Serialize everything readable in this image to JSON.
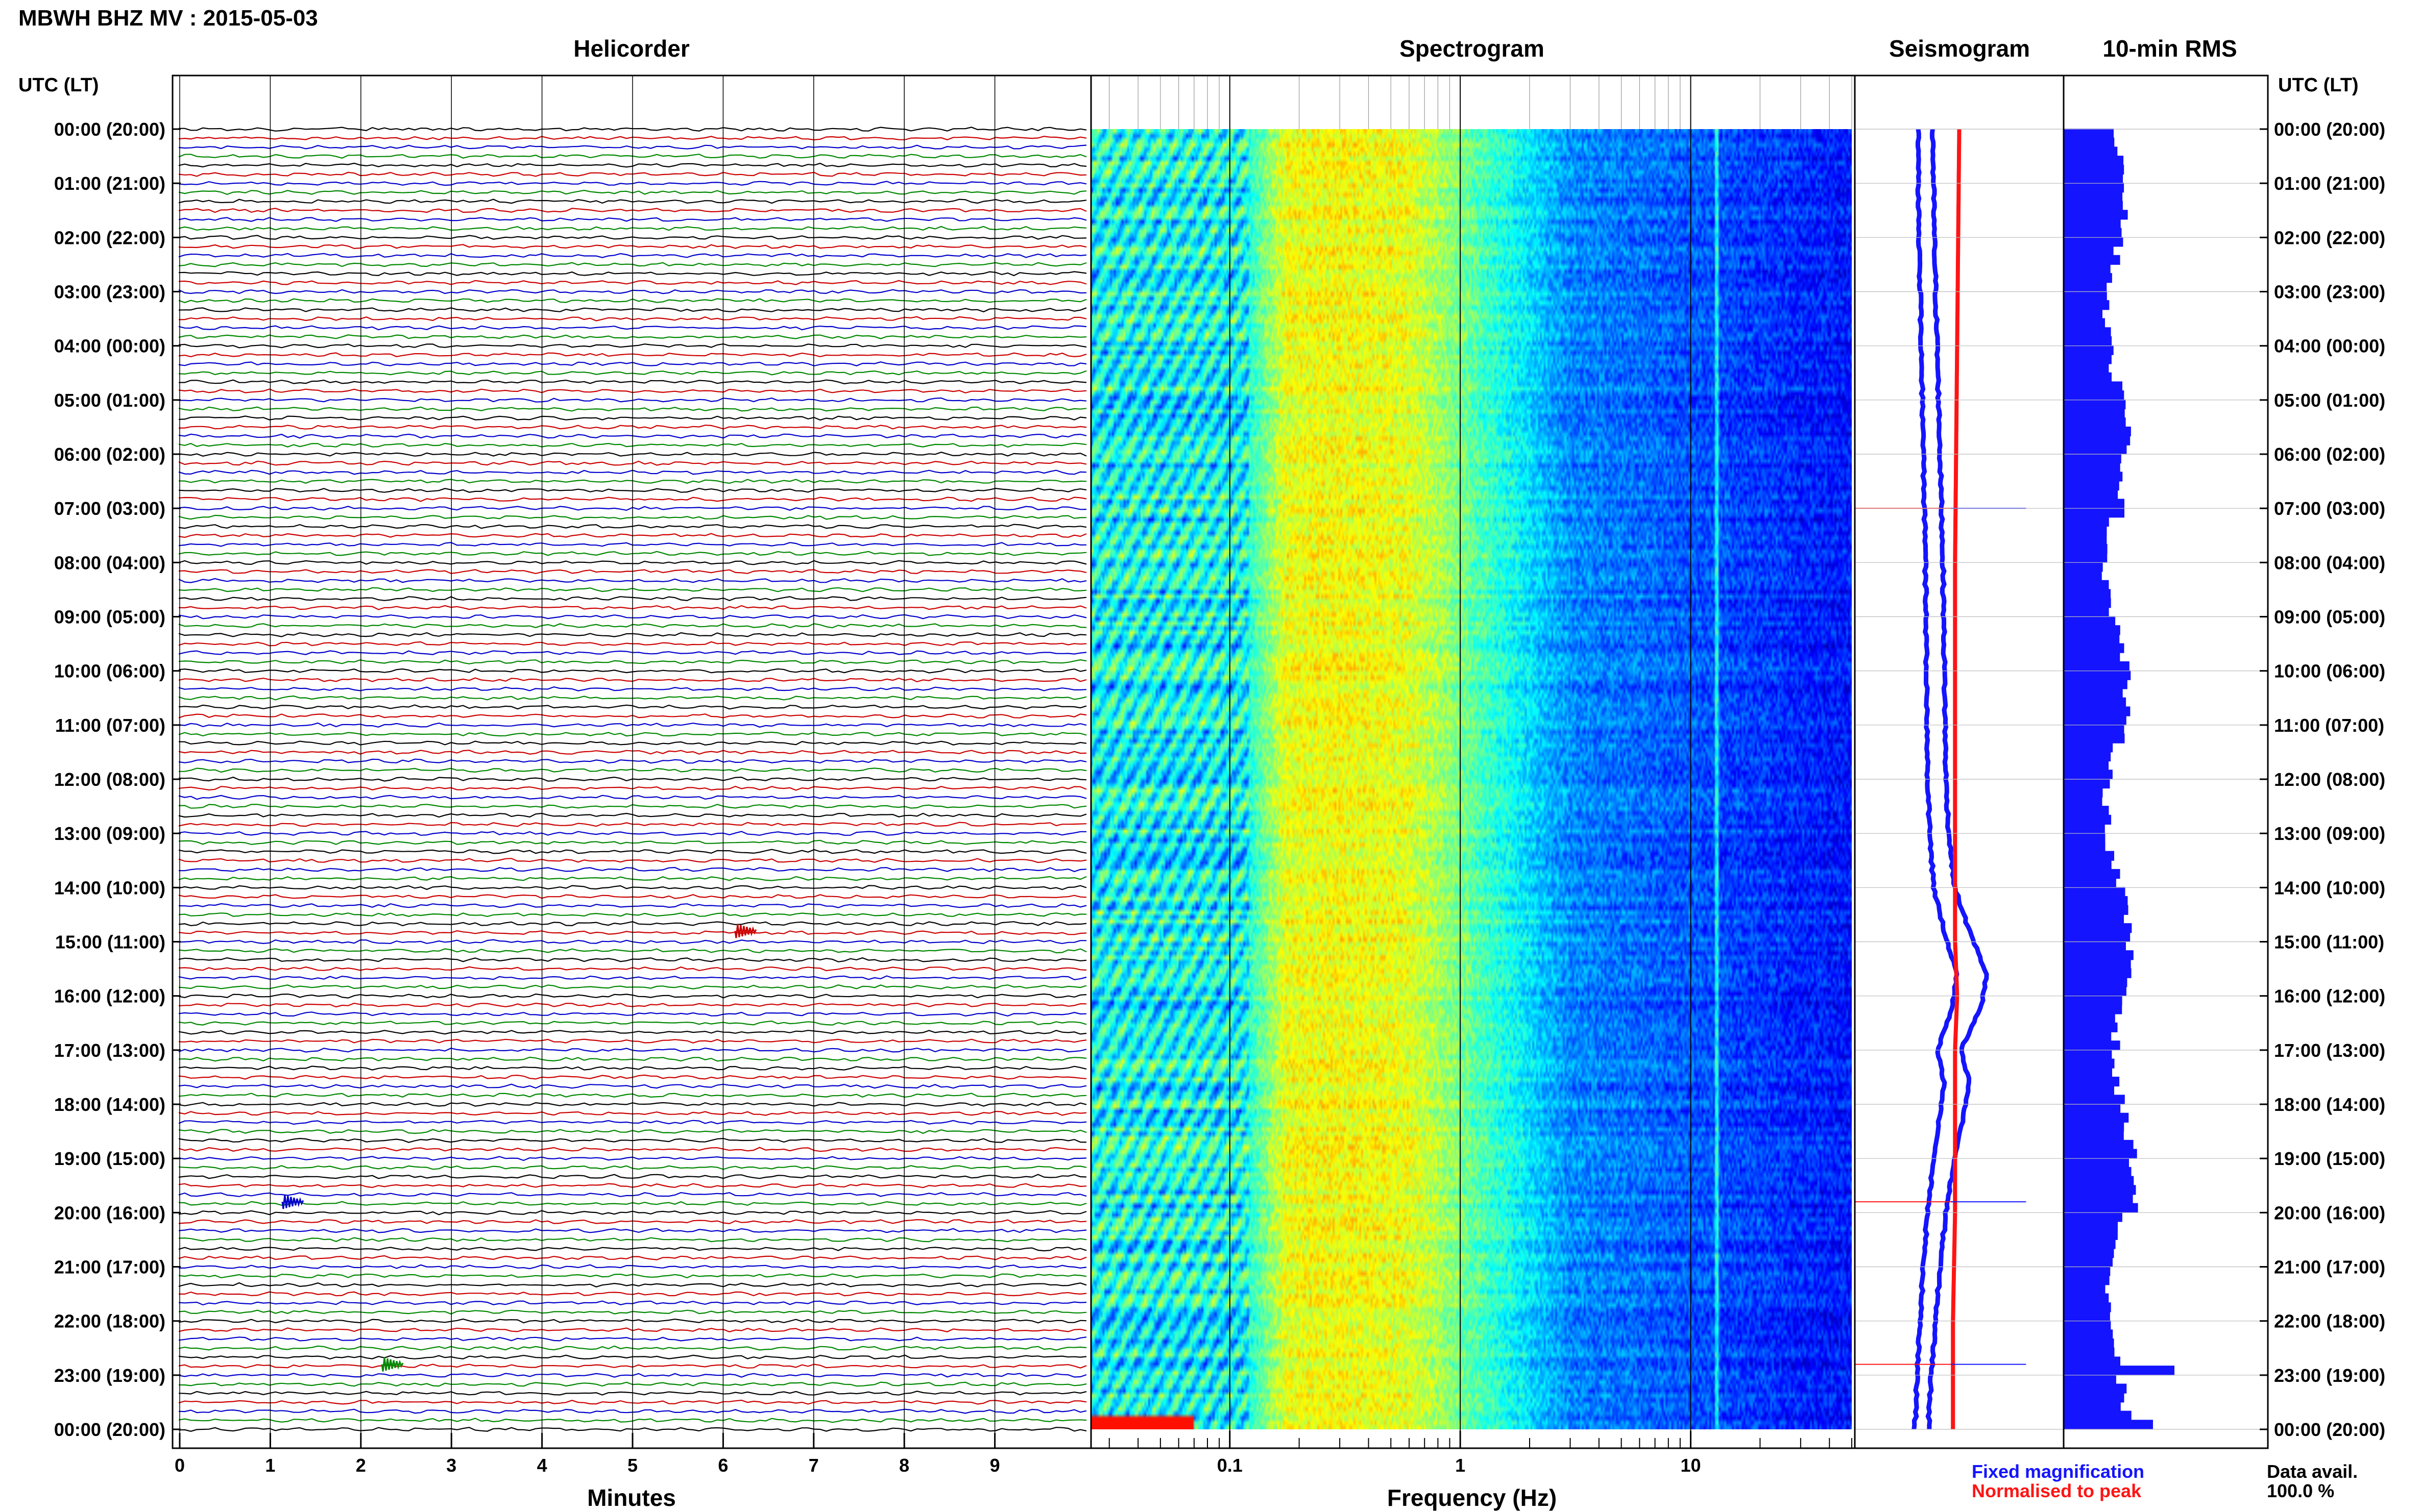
{
  "header": {
    "title": "MBWH BHZ MV : 2015-05-03",
    "utc_label": "UTC (LT)"
  },
  "panels": {
    "helicorder": "Helicorder",
    "spectrogram": "Spectrogram",
    "seismogram": "Seismogram",
    "rms": "10-min RMS"
  },
  "footer": {
    "legend_fixed": "Fixed magnification",
    "legend_normalised": "Normalised to peak",
    "data_avail_label": "Data avail.",
    "data_avail_value": "100.0 %"
  },
  "colors": {
    "trace_cycle": [
      "#000000",
      "#cc0000",
      "#0000cc",
      "#008800"
    ],
    "fixed": "#1414ff",
    "normalised": "#ff1414",
    "rms_bar": "#1414ff"
  },
  "chart_data": [
    {
      "type": "line",
      "name": "helicorder",
      "title": "Helicorder",
      "xlabel": "Minutes",
      "xlim": [
        0,
        10
      ],
      "x_ticks": [
        "0",
        "1",
        "2",
        "3",
        "4",
        "5",
        "6",
        "7",
        "8",
        "9"
      ],
      "y_tick_labels": [
        "00:00 (20:00)",
        "01:00 (21:00)",
        "02:00 (22:00)",
        "03:00 (23:00)",
        "04:00 (00:00)",
        "05:00 (01:00)",
        "06:00 (02:00)",
        "07:00 (03:00)",
        "08:00 (04:00)",
        "09:00 (05:00)",
        "10:00 (06:00)",
        "11:00 (07:00)",
        "12:00 (08:00)",
        "13:00 (09:00)",
        "14:00 (10:00)",
        "15:00 (11:00)",
        "16:00 (12:00)",
        "17:00 (13:00)",
        "18:00 (14:00)",
        "19:00 (15:00)",
        "20:00 (16:00)",
        "21:00 (17:00)",
        "22:00 (18:00)",
        "23:00 (19:00)",
        "00:00 (20:00)"
      ],
      "traces_per_day": 144,
      "events": [
        {
          "hour": 14.8,
          "minute": 6.2
        },
        {
          "hour": 19.8,
          "minute": 1.2
        },
        {
          "hour": 22.8,
          "minute": 2.3
        }
      ]
    },
    {
      "type": "heatmap",
      "name": "spectrogram",
      "title": "Spectrogram",
      "xlabel": "Frequency (Hz)",
      "x_scale": "log",
      "xlim": [
        0.025,
        50
      ],
      "x_ticks": [
        0.1,
        1,
        10
      ],
      "x_tick_labels": [
        "0.1",
        "1",
        "10"
      ],
      "ylim_hours": [
        0,
        24
      ],
      "peak_band_hz": [
        0.15,
        0.6
      ],
      "narrow_line_hz": 13
    },
    {
      "type": "line",
      "name": "seismogram",
      "title": "Seismogram",
      "series": [
        {
          "name": "Fixed magnification",
          "hours": [
            0,
            2,
            4,
            6,
            8,
            10,
            12,
            13,
            14,
            14.8,
            15.6,
            16.2,
            17,
            17.6,
            18.2,
            19,
            20,
            21,
            22,
            23,
            24
          ],
          "level": [
            0.25,
            0.26,
            0.28,
            0.3,
            0.32,
            0.33,
            0.34,
            0.36,
            0.4,
            0.5,
            0.62,
            0.58,
            0.44,
            0.5,
            0.46,
            0.4,
            0.34,
            0.3,
            0.27,
            0.24,
            0.22
          ]
        },
        {
          "name": "Normalised to peak",
          "hours": [
            0,
            4,
            8,
            12,
            15,
            16,
            17,
            18,
            20,
            22,
            24
          ],
          "level": [
            0.48,
            0.47,
            0.46,
            0.46,
            0.46,
            0.47,
            0.46,
            0.46,
            0.46,
            0.45,
            0.45
          ]
        }
      ],
      "spikes_hours": [
        7.0,
        19.8,
        22.8
      ]
    },
    {
      "type": "bar",
      "name": "rms",
      "title": "10-min RMS",
      "orientation": "horizontal",
      "ylim_hours": [
        0,
        24
      ],
      "bins_per_day": 144,
      "anomalies": [
        {
          "hour": 6.9,
          "level": 0.85
        },
        {
          "hour": 22.9,
          "level": 1.55
        },
        {
          "hour": 23.8,
          "level": 1.25
        }
      ]
    }
  ]
}
